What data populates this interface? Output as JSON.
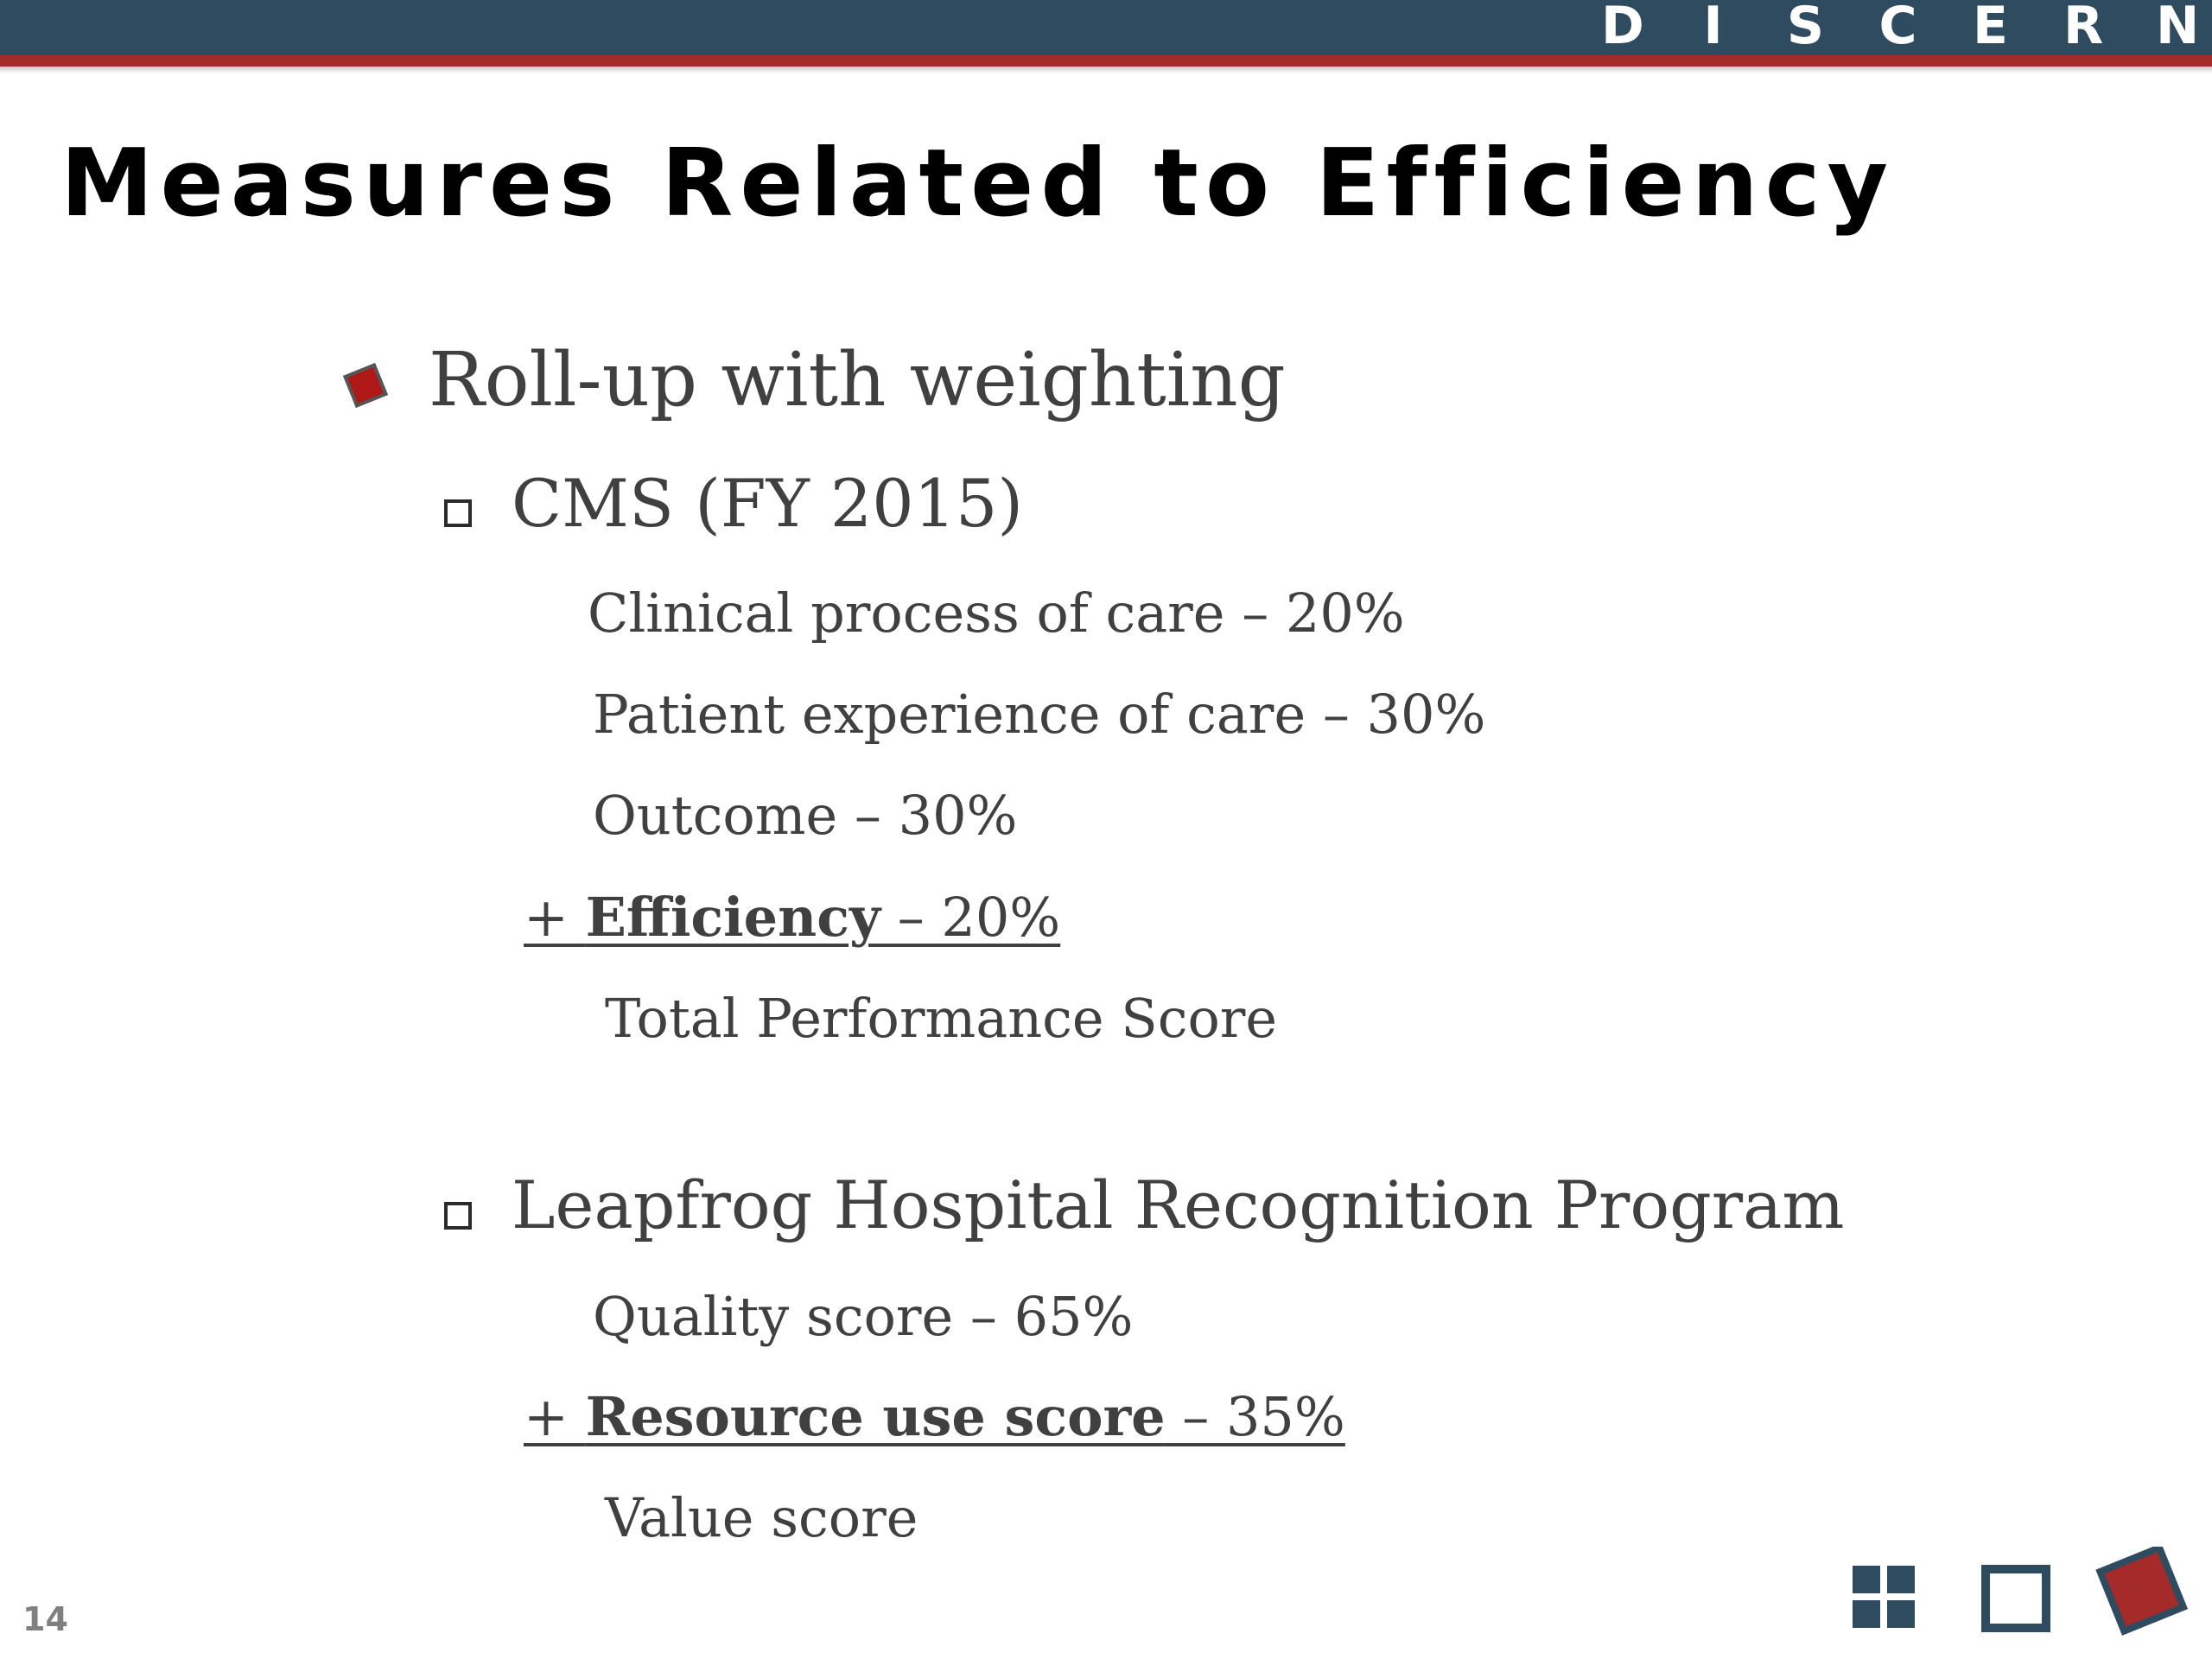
{
  "header": {
    "brand_letters": [
      "D",
      "I",
      "S",
      "C",
      "E",
      "R",
      "N"
    ],
    "colors": {
      "bar": "#2e4b60",
      "accent": "#a52a2a"
    }
  },
  "slide": {
    "title": "Measures Related to Efficiency",
    "bullet": "Roll-up with weighting",
    "cms": {
      "heading": "CMS (FY 2015)",
      "items": [
        "Clinical process of care – 20%",
        "Patient experience of care – 30%",
        "Outcome – 30%"
      ],
      "added_prefix": "+ ",
      "added_label": "Efficiency",
      "added_value": " – 20%",
      "total": "Total Performance Score"
    },
    "leapfrog": {
      "heading": "Leapfrog Hospital Recognition Program",
      "items": [
        "Quality score – 65%"
      ],
      "added_prefix": "+ ",
      "added_label": "Resource use score",
      "added_value": " – 35%",
      "total": "Value score"
    },
    "page_number": "14"
  },
  "footer_icons": [
    "grid-icon",
    "square-icon",
    "diamond-icon"
  ]
}
